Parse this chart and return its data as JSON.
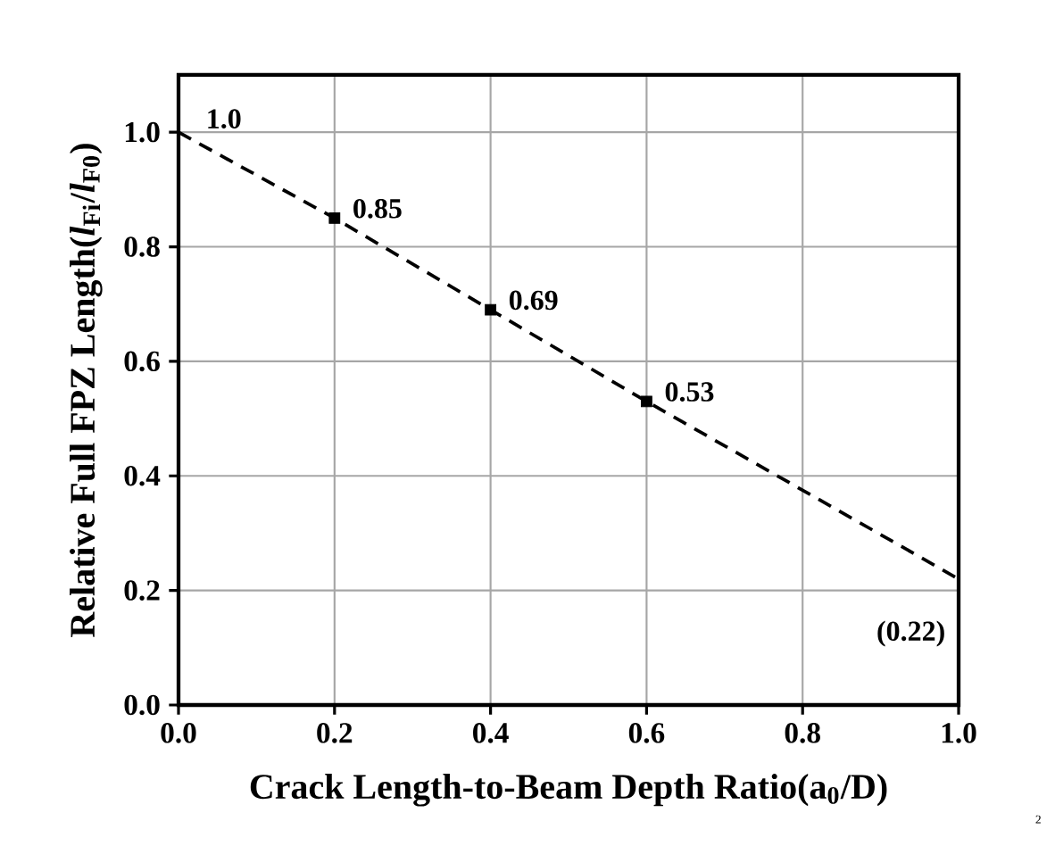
{
  "chart_data": {
    "type": "line",
    "xlabel": "Crack Length-to-Beam Depth Ratio(a$_{0}$/D)",
    "ylabel": "Relative Full FPZ Length(*l*$_{Fi}$/*l*$_{F0}$)",
    "annotations": [
      "2"
    ],
    "series": [
      {
        "x": [
          0,
          0.2,
          0.4,
          0.6,
          1.0
        ],
        "values": [
          1.0,
          0.85,
          0.69,
          0.53,
          0.22
        ],
        "color": "#000000",
        "line_style": "dashed",
        "marker": "none",
        "value_labels": [
          "1.0",
          "0.85",
          "0.69",
          "0.53",
          "(0.22)"
        ]
      },
      {
        "type": "scatter",
        "x": [
          0.2,
          0.4,
          0.6
        ],
        "values": [
          0.85,
          0.69,
          0.53
        ],
        "color": "#000000",
        "marker": "square"
      }
    ],
    "xlim": [
      0,
      1.0
    ],
    "ylim": [
      0,
      1.1
    ],
    "xticks": [
      {
        "value": 0,
        "label": "0.0"
      },
      {
        "value": 0.2,
        "label": "0.2"
      },
      {
        "value": 0.4,
        "label": "0.4"
      },
      {
        "value": 0.6,
        "label": "0.6"
      },
      {
        "value": 0.8,
        "label": "0.8"
      },
      {
        "value": 1.0,
        "label": "1.0"
      }
    ],
    "yticks": [
      {
        "value": 0,
        "label": "0.0"
      },
      {
        "value": 0.2,
        "label": "0.2"
      },
      {
        "value": 0.4,
        "label": "0.4"
      },
      {
        "value": 0.6,
        "label": "0.6"
      },
      {
        "value": 0.8,
        "label": "0.8"
      },
      {
        "value": 1.0,
        "label": "1.0"
      }
    ],
    "grid": true
  }
}
